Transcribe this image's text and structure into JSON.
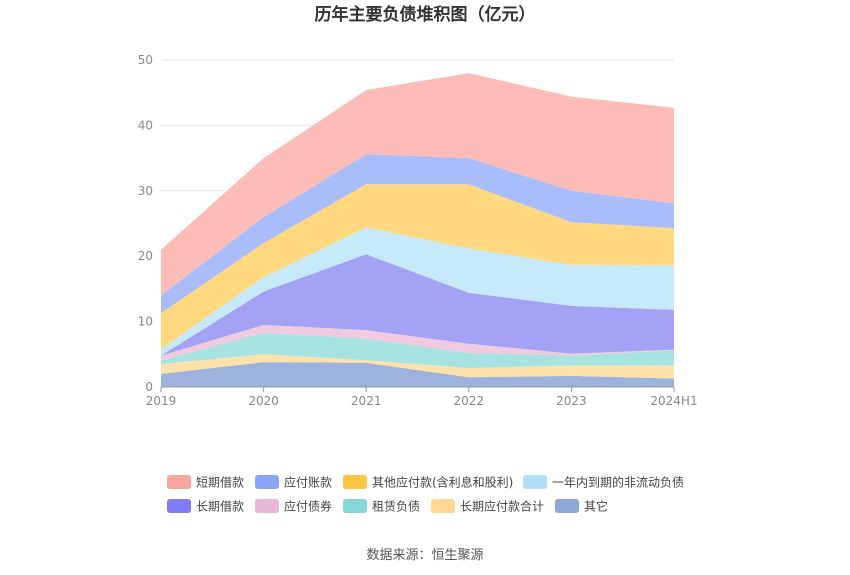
{
  "chart_data": {
    "type": "area",
    "stacked": true,
    "title": "历年主要负债堆积图（亿元）",
    "categories": [
      "2019",
      "2020",
      "2021",
      "2022",
      "2023",
      "2024H1"
    ],
    "ylim": [
      0,
      50
    ],
    "yticks": [
      0,
      10,
      20,
      30,
      40,
      50
    ],
    "grid": true,
    "legend_position": "bottom",
    "series": [
      {
        "name": "其它",
        "color": "#9db3de",
        "values": [
          2.0,
          3.8,
          3.7,
          1.5,
          1.7,
          1.3
        ]
      },
      {
        "name": "长期应付款合计",
        "color": "#ffe2aa",
        "values": [
          1.5,
          1.2,
          0.4,
          1.4,
          1.6,
          2.0
        ]
      },
      {
        "name": "租赁负债",
        "color": "#a6e3e1",
        "values": [
          0.5,
          3.3,
          3.3,
          2.3,
          1.5,
          2.3
        ]
      },
      {
        "name": "应付债券",
        "color": "#f0cbe0",
        "values": [
          0.8,
          1.2,
          1.3,
          1.4,
          0.3,
          0.1
        ]
      },
      {
        "name": "长期借款",
        "color": "#a3a2f5",
        "values": [
          0.0,
          5.1,
          11.6,
          7.8,
          7.3,
          6.1
        ]
      },
      {
        "name": "一年内到期的非流动负债",
        "color": "#c6eafa",
        "values": [
          1.0,
          2.2,
          4.1,
          6.8,
          6.3,
          6.8
        ]
      },
      {
        "name": "其他应付款(含利息和股利)",
        "color": "#ffd87f",
        "values": [
          5.5,
          5.2,
          6.6,
          9.8,
          6.5,
          5.7
        ]
      },
      {
        "name": "应付账款",
        "color": "#a9bdfb",
        "values": [
          2.7,
          4.0,
          4.6,
          4.0,
          4.8,
          3.8
        ]
      },
      {
        "name": "短期借款",
        "color": "#fdbcb7",
        "values": [
          7.0,
          9.0,
          9.8,
          13.0,
          14.4,
          14.6
        ]
      }
    ],
    "legend": [
      {
        "name": "短期借款",
        "color": "#f9a69f"
      },
      {
        "name": "应付账款",
        "color": "#8ba6f9"
      },
      {
        "name": "其他应付款(含利息和股利)",
        "color": "#fdc642"
      },
      {
        "name": "一年内到期的非流动负债",
        "color": "#aee0fa"
      },
      {
        "name": "长期借款",
        "color": "#7f7cf6"
      },
      {
        "name": "应付债券",
        "color": "#eab8d7"
      },
      {
        "name": "租赁负债",
        "color": "#84d8d5"
      },
      {
        "name": "长期应付款合计",
        "color": "#ffd893"
      },
      {
        "name": "其它",
        "color": "#8fa9d9"
      }
    ]
  },
  "source": "数据来源：恒生聚源"
}
